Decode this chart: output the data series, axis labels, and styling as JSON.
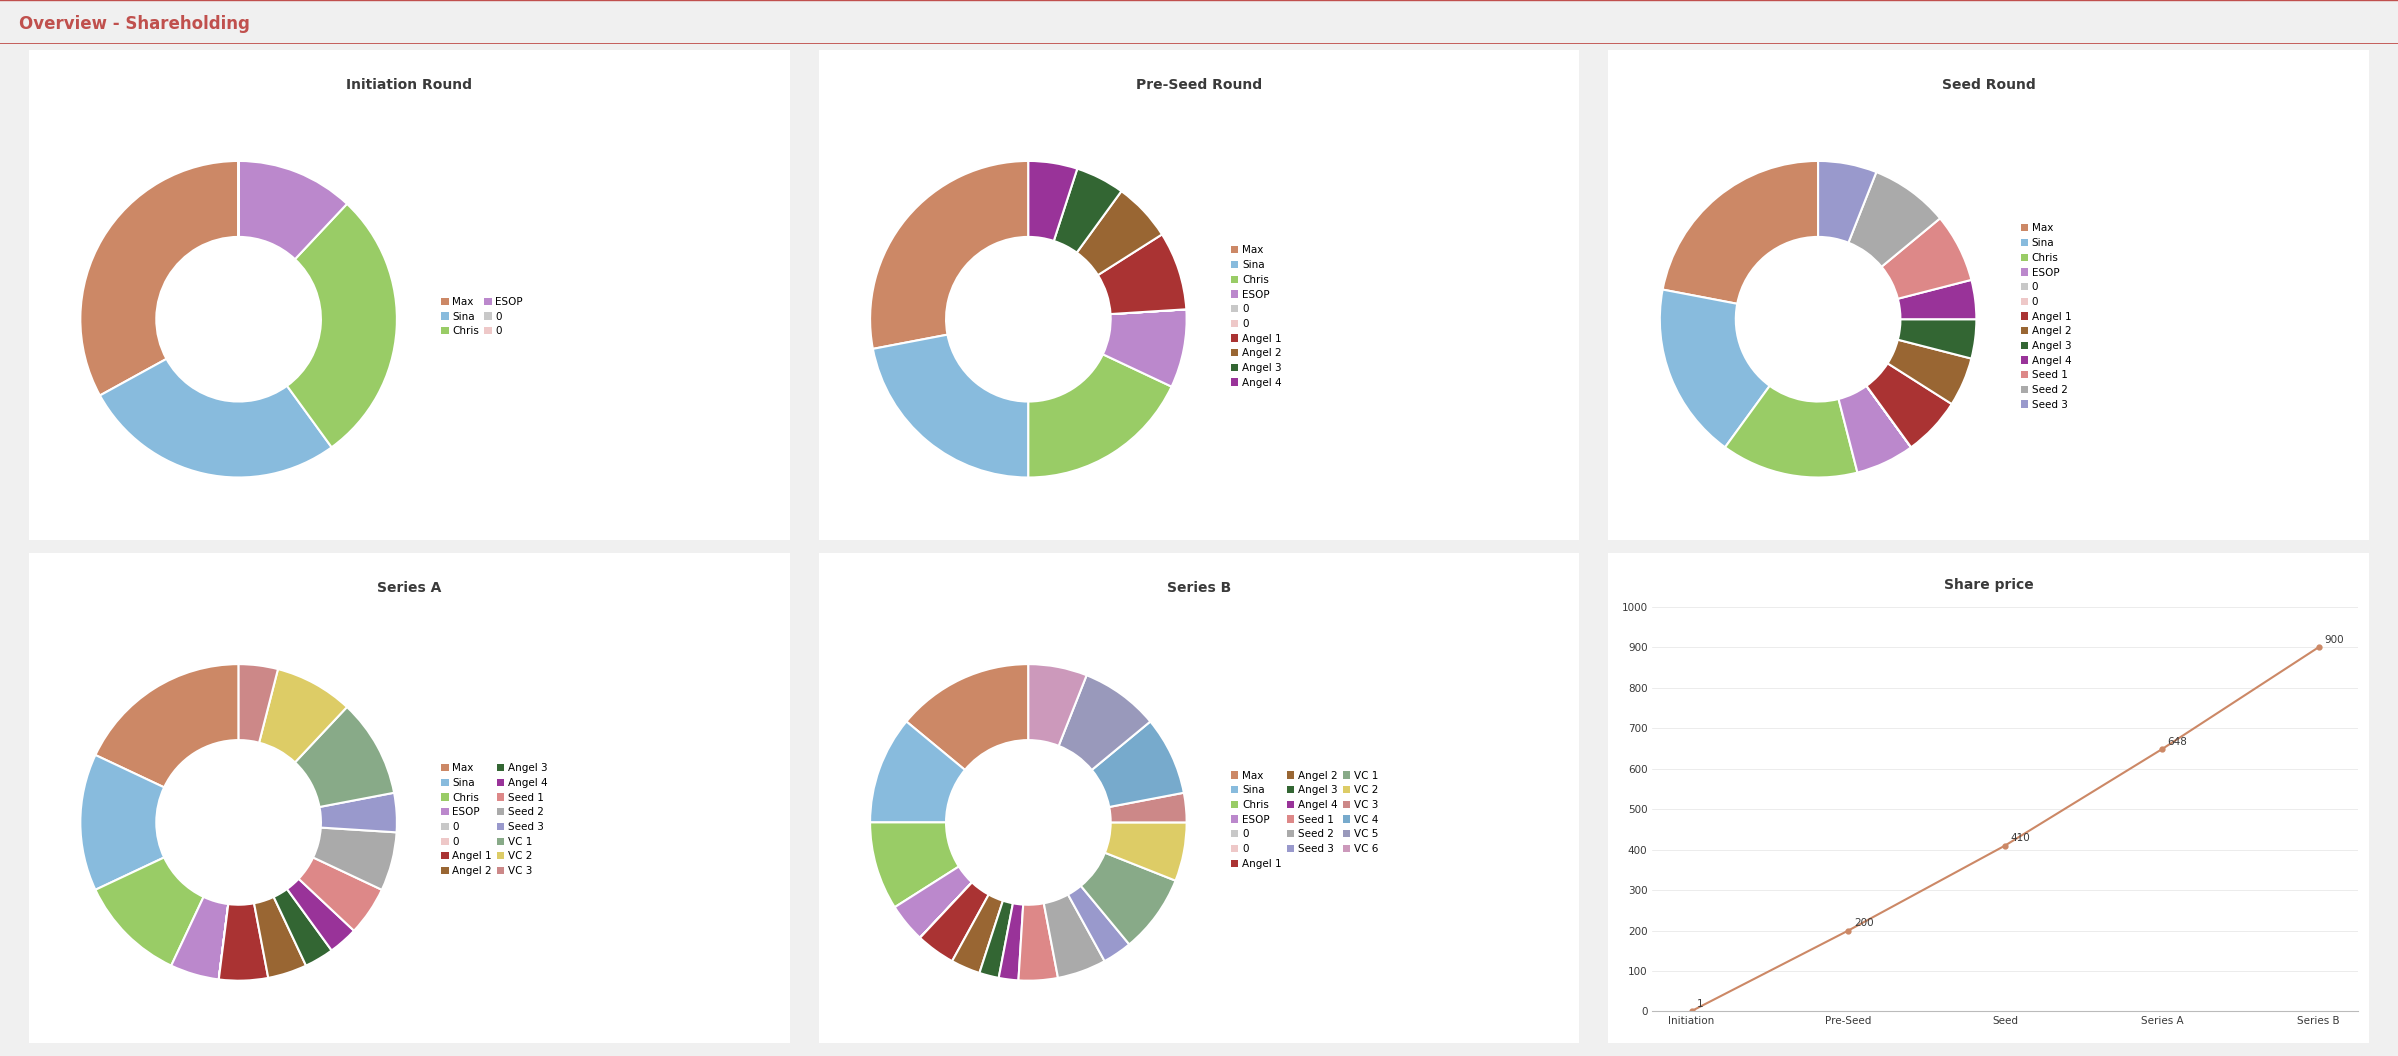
{
  "title": "Overview - Shareholding",
  "title_color": "#C0504D",
  "background_color": "#F0F0F0",
  "panel_facecolor": "#FFFFFF",
  "panel_edgecolor": "#CCCCCC",
  "initiation": {
    "title": "Initiation Round",
    "labels": [
      "Max",
      "Sina",
      "Chris",
      "ESOP",
      "0",
      "0"
    ],
    "values": [
      33,
      27,
      28,
      12,
      0.001,
      0.001
    ],
    "colors": [
      "#CC8866",
      "#88BBDD",
      "#99CC66",
      "#BB88CC",
      "#C8C8C8",
      "#EEC8C8"
    ],
    "legend_ncol": 2
  },
  "preseed": {
    "title": "Pre-Seed Round",
    "labels": [
      "Max",
      "Sina",
      "Chris",
      "ESOP",
      "0",
      "0",
      "Angel 1",
      "Angel 2",
      "Angel 3",
      "Angel 4"
    ],
    "values": [
      28,
      22,
      18,
      8,
      0.001,
      0.001,
      8,
      6,
      5,
      5
    ],
    "colors": [
      "#CC8866",
      "#88BBDD",
      "#99CC66",
      "#BB88CC",
      "#C8C8C8",
      "#EEC8C8",
      "#AA3333",
      "#996633",
      "#336633",
      "#993399"
    ],
    "legend_ncol": 1
  },
  "seed": {
    "title": "Seed Round",
    "labels": [
      "Max",
      "Sina",
      "Chris",
      "ESOP",
      "0",
      "0",
      "Angel 1",
      "Angel 2",
      "Angel 3",
      "Angel 4",
      "Seed 1",
      "Seed 2",
      "Seed 3"
    ],
    "values": [
      22,
      18,
      14,
      6,
      0.001,
      0.001,
      6,
      5,
      4,
      4,
      7,
      8,
      6
    ],
    "colors": [
      "#CC8866",
      "#88BBDD",
      "#99CC66",
      "#BB88CC",
      "#C8C8C8",
      "#EEC8C8",
      "#AA3333",
      "#996633",
      "#336633",
      "#993399",
      "#DD8888",
      "#AAAAAA",
      "#9999CC"
    ],
    "legend_ncol": 1
  },
  "series_a": {
    "title": "Series A",
    "labels": [
      "Max",
      "Sina",
      "Chris",
      "ESOP",
      "0",
      "0",
      "Angel 1",
      "Angel 2",
      "Angel 3",
      "Angel 4",
      "Seed 1",
      "Seed 2",
      "Seed 3",
      "VC 1",
      "VC 2",
      "VC 3"
    ],
    "values": [
      18,
      14,
      11,
      5,
      0.001,
      0.001,
      5,
      4,
      3,
      3,
      5,
      6,
      4,
      10,
      8,
      4
    ],
    "colors": [
      "#CC8866",
      "#88BBDD",
      "#99CC66",
      "#BB88CC",
      "#C8C8C8",
      "#EEC8C8",
      "#AA3333",
      "#996633",
      "#336633",
      "#993399",
      "#DD8888",
      "#AAAAAA",
      "#9999CC",
      "#88AA88",
      "#DDCC66",
      "#CC8888"
    ],
    "legend_ncol": 2
  },
  "series_b": {
    "title": "Series B",
    "labels": [
      "Max",
      "Sina",
      "Chris",
      "ESOP",
      "0",
      "0",
      "Angel 1",
      "Angel 2",
      "Angel 3",
      "Angel 4",
      "Seed 1",
      "Seed 2",
      "Seed 3",
      "VC 1",
      "VC 2",
      "VC 3",
      "VC 4",
      "VC 5",
      "VC 6"
    ],
    "values": [
      14,
      11,
      9,
      4,
      0.001,
      0.001,
      4,
      3,
      2,
      2,
      4,
      5,
      3,
      8,
      6,
      3,
      8,
      8,
      6
    ],
    "colors": [
      "#CC8866",
      "#88BBDD",
      "#99CC66",
      "#BB88CC",
      "#C8C8C8",
      "#EEC8C8",
      "#AA3333",
      "#996633",
      "#336633",
      "#993399",
      "#DD8888",
      "#AAAAAA",
      "#9999CC",
      "#88AA88",
      "#DDCC66",
      "#CC8888",
      "#77AACC",
      "#9999BB",
      "#CC99BB"
    ],
    "legend_ncol": 3
  },
  "share_price": {
    "title": "Share price",
    "x_labels": [
      "Initiation",
      "Pre-Seed",
      "Seed",
      "Series A",
      "Series B"
    ],
    "values": [
      1,
      200,
      410,
      648,
      900
    ],
    "line_color": "#CC8866",
    "yticks": [
      0,
      100,
      200,
      300,
      400,
      500,
      600,
      700,
      800,
      900,
      1000
    ],
    "annotations": [
      "1",
      "200",
      "410",
      "648",
      "900"
    ]
  }
}
